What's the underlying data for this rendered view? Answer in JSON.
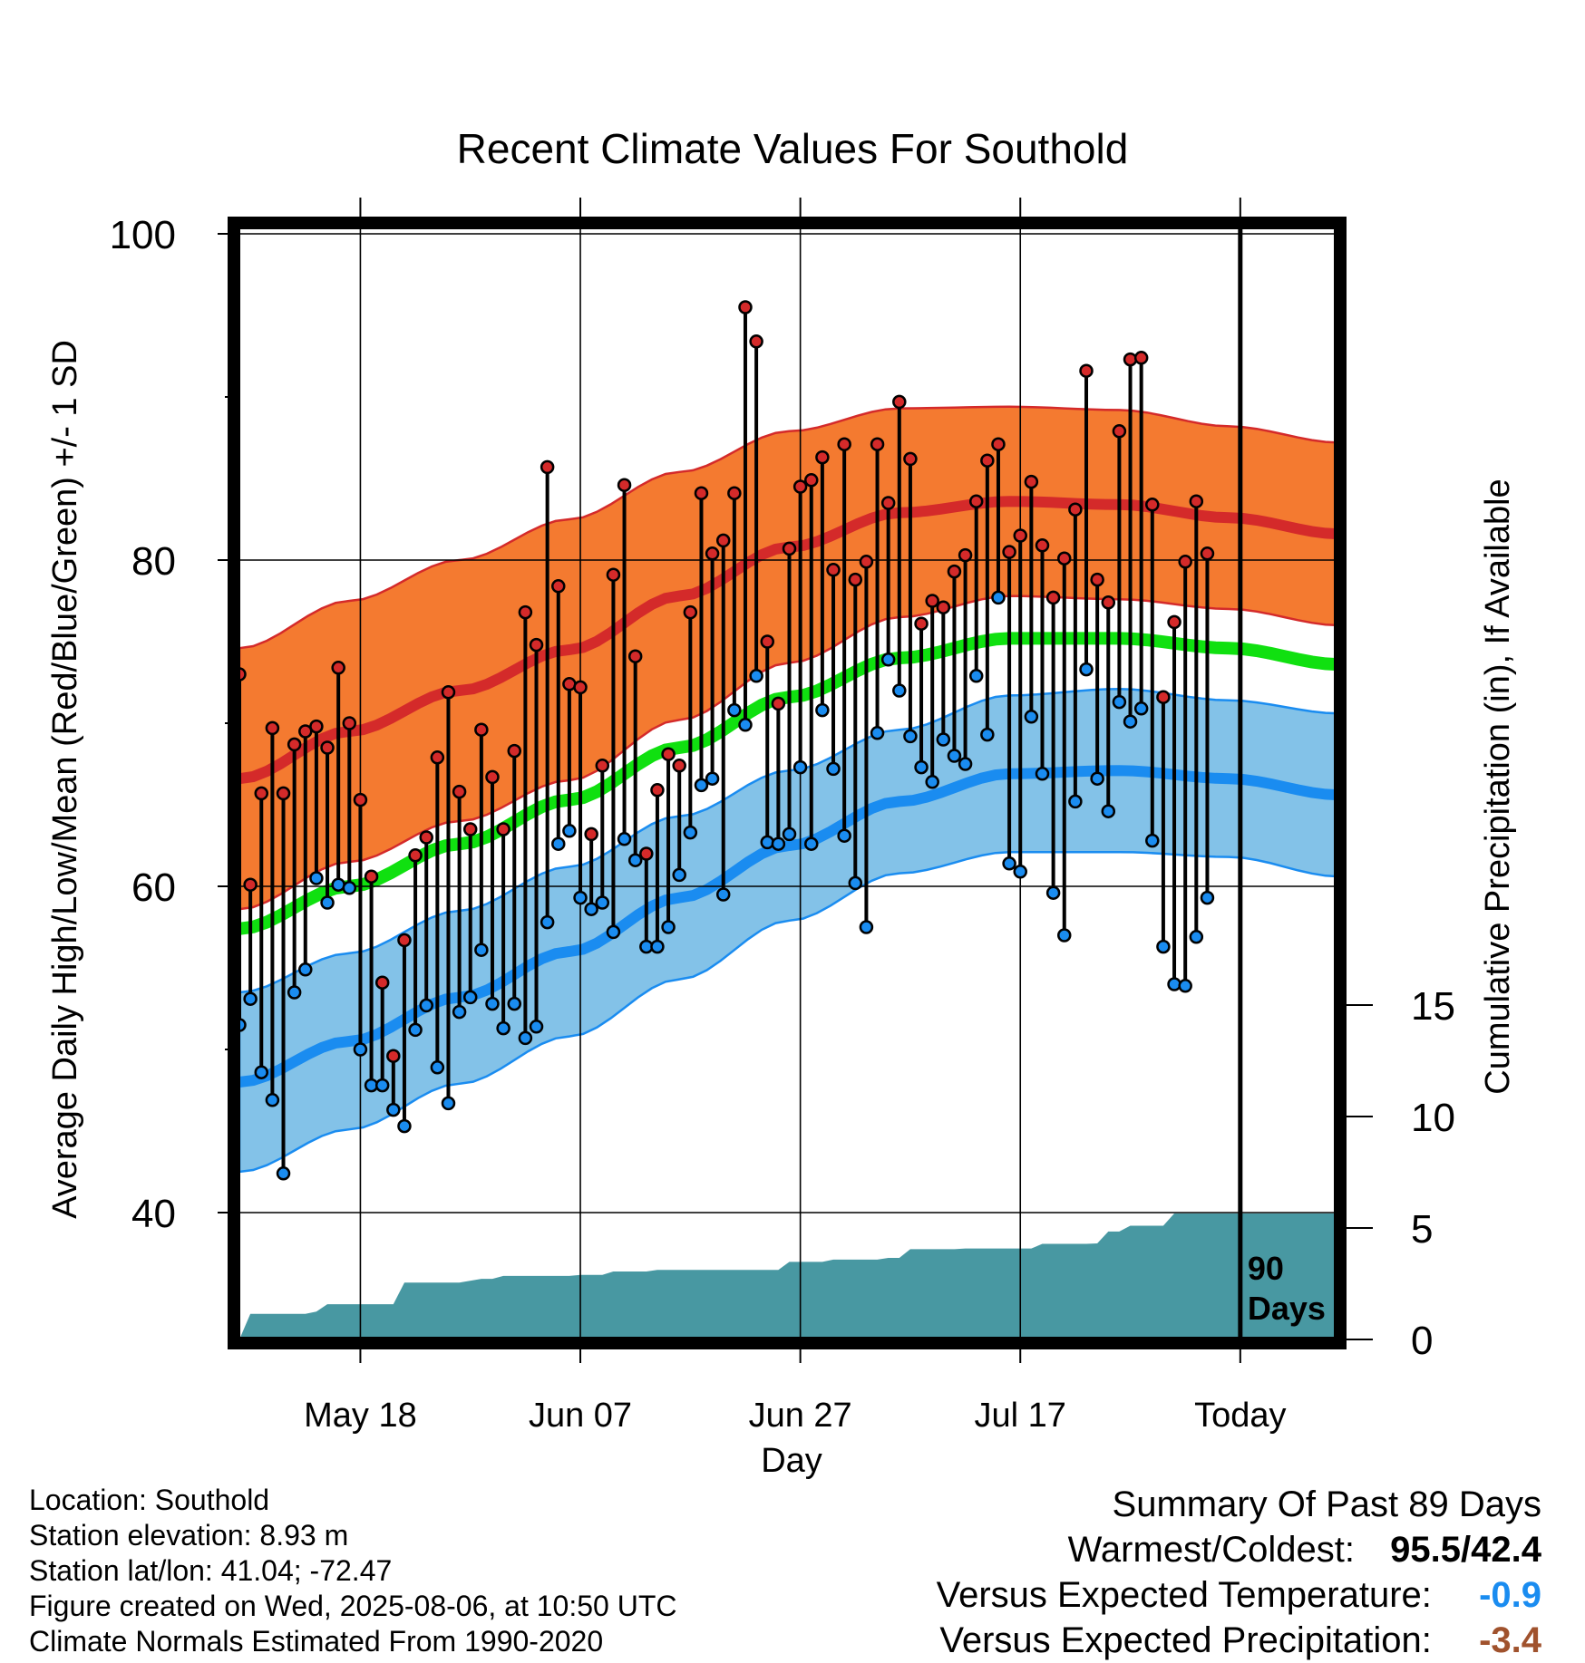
{
  "chart_data": {
    "type": "line",
    "title": "Recent Climate Values For Southold",
    "xlabel": "Day",
    "ylabel": "Average Daily High/Low/Mean (Red/Blue/Green) +/- 1 SD",
    "y2label": "Cumulative Precipitation (in), If Available",
    "ylim": [
      33,
      101
    ],
    "y2lim": [
      0,
      20
    ],
    "yticks": [
      40,
      60,
      80,
      100
    ],
    "y2ticks": [
      0,
      5,
      10,
      15
    ],
    "x_date_range": [
      "2025-05-07",
      "2025-08-06"
    ],
    "xticks": [
      {
        "date": "2025-05-18",
        "label": "May 18"
      },
      {
        "date": "2025-06-07",
        "label": "Jun 07"
      },
      {
        "date": "2025-06-27",
        "label": "Jun 27"
      },
      {
        "date": "2025-07-17",
        "label": "Jul 17"
      },
      {
        "date": "2025-08-06",
        "label": "Today"
      }
    ],
    "today_marker": {
      "date": "2025-08-06",
      "label": [
        "90",
        "Days"
      ]
    },
    "normals": {
      "dates": [
        "2025-05-07",
        "2025-05-17",
        "2025-05-27",
        "2025-06-06",
        "2025-06-16",
        "2025-06-26",
        "2025-07-06",
        "2025-07-16",
        "2025-07-26",
        "2025-08-05",
        "2025-08-15"
      ],
      "high_mean": [
        66.6,
        69.5,
        72.0,
        74.5,
        77.8,
        80.8,
        82.9,
        83.6,
        83.4,
        82.6,
        81.6
      ],
      "high_sd": [
        8.0,
        8.0,
        8.0,
        8.0,
        7.6,
        7.1,
        6.4,
        5.8,
        5.8,
        5.6,
        5.6
      ],
      "low_mean": [
        48.0,
        50.5,
        53.2,
        56.0,
        59.3,
        62.5,
        65.2,
        66.9,
        67.1,
        66.6,
        65.6
      ],
      "low_sd": [
        5.5,
        5.4,
        5.3,
        5.2,
        5.0,
        4.6,
        4.4,
        4.8,
        5.0,
        4.8,
        5.0
      ],
      "mean_temp": [
        57.4,
        60.0,
        62.6,
        65.3,
        68.5,
        71.6,
        74.0,
        75.2,
        75.2,
        74.6,
        73.6
      ]
    },
    "series": [
      {
        "name": "High",
        "start_date": "2025-05-07",
        "values": [
          73.0,
          60.1,
          65.7,
          69.7,
          65.7,
          68.7,
          69.5,
          69.8,
          68.5,
          73.4,
          70.0,
          65.3,
          60.6,
          54.1,
          49.6,
          56.7,
          61.9,
          63.0,
          67.9,
          71.9,
          65.8,
          63.5,
          69.6,
          66.7,
          63.5,
          68.3,
          76.8,
          74.8,
          85.7,
          78.4,
          72.4,
          72.2,
          63.2,
          67.4,
          79.1,
          84.6,
          74.1,
          62.0,
          65.9,
          68.1,
          67.4,
          76.8,
          84.1,
          80.4,
          81.2,
          84.1,
          95.5,
          93.4,
          75.0,
          71.2,
          80.7,
          84.5,
          84.9,
          86.3,
          79.4,
          87.1,
          78.8,
          79.9,
          87.1,
          83.5,
          89.7,
          86.2,
          76.1,
          77.5,
          77.1,
          79.3,
          80.3,
          83.6,
          86.1,
          87.1,
          80.5,
          81.5,
          84.8,
          80.9,
          77.7,
          80.1,
          83.1,
          91.6,
          78.8,
          77.4,
          87.9,
          92.3,
          92.4,
          83.4,
          71.6,
          76.2,
          79.9,
          83.6,
          80.4
        ]
      },
      {
        "name": "Low",
        "start_date": "2025-05-07",
        "values": [
          51.5,
          53.1,
          48.6,
          46.9,
          42.4,
          53.5,
          54.9,
          60.5,
          59.0,
          60.1,
          59.9,
          50.0,
          47.8,
          47.8,
          46.3,
          45.3,
          51.2,
          52.7,
          48.9,
          46.7,
          52.3,
          53.2,
          56.1,
          52.8,
          51.3,
          52.8,
          50.7,
          51.4,
          57.8,
          62.6,
          63.4,
          59.3,
          58.6,
          59.0,
          57.2,
          62.9,
          61.6,
          56.3,
          56.3,
          57.5,
          60.7,
          63.3,
          66.2,
          66.6,
          59.5,
          70.8,
          69.9,
          72.9,
          62.7,
          62.6,
          63.2,
          67.3,
          62.6,
          70.8,
          67.2,
          63.1,
          60.2,
          57.5,
          69.4,
          73.9,
          72.0,
          69.2,
          67.3,
          66.4,
          69.0,
          68.0,
          67.5,
          72.9,
          69.3,
          77.7,
          61.4,
          60.9,
          70.4,
          66.9,
          59.6,
          57.0,
          65.2,
          73.3,
          66.6,
          64.6,
          71.3,
          70.1,
          70.9,
          62.8,
          56.3,
          54.0,
          53.9,
          56.9,
          59.3
        ]
      },
      {
        "name": "Cumulative Precipitation",
        "axis": "y2",
        "points": [
          [
            "2025-05-07",
            0.0
          ],
          [
            "2025-05-08",
            1.15
          ],
          [
            "2025-05-13",
            1.15
          ],
          [
            "2025-05-14",
            1.25
          ],
          [
            "2025-05-15",
            1.58
          ],
          [
            "2025-05-21",
            1.58
          ],
          [
            "2025-05-22",
            2.55
          ],
          [
            "2025-05-27",
            2.55
          ],
          [
            "2025-05-29",
            2.72
          ],
          [
            "2025-05-30",
            2.72
          ],
          [
            "2025-05-31",
            2.85
          ],
          [
            "2025-06-06",
            2.85
          ],
          [
            "2025-06-07",
            2.9
          ],
          [
            "2025-06-09",
            2.9
          ],
          [
            "2025-06-10",
            3.05
          ],
          [
            "2025-06-13",
            3.05
          ],
          [
            "2025-06-14",
            3.12
          ],
          [
            "2025-06-25",
            3.12
          ],
          [
            "2025-06-26",
            3.48
          ],
          [
            "2025-06-29",
            3.48
          ],
          [
            "2025-06-30",
            3.58
          ],
          [
            "2025-07-04",
            3.58
          ],
          [
            "2025-07-05",
            3.66
          ],
          [
            "2025-07-06",
            3.66
          ],
          [
            "2025-07-07",
            4.05
          ],
          [
            "2025-07-11",
            4.05
          ],
          [
            "2025-07-12",
            4.08
          ],
          [
            "2025-07-18",
            4.08
          ],
          [
            "2025-07-19",
            4.29
          ],
          [
            "2025-07-22",
            4.29
          ],
          [
            "2025-07-23",
            4.29
          ],
          [
            "2025-07-24",
            4.31
          ],
          [
            "2025-07-25",
            4.84
          ],
          [
            "2025-07-26",
            4.84
          ],
          [
            "2025-07-27",
            5.1
          ],
          [
            "2025-07-29",
            5.1
          ],
          [
            "2025-07-30",
            5.1
          ],
          [
            "2025-07-31",
            5.65
          ],
          [
            "2025-08-01",
            5.65
          ],
          [
            "2025-08-15",
            5.65
          ]
        ]
      }
    ],
    "colors": {
      "high_band": "#f47a30",
      "high_line": "#d42a2a",
      "low_band": "#83c2e8",
      "low_line": "#1a8cf0",
      "mean_line": "#10e010",
      "precip": "#4898a2",
      "high_dot": "#d42a2a",
      "low_dot": "#1a8cf0"
    },
    "grid": true
  },
  "info": {
    "location": "Location: Southold",
    "elevation": "Station elevation: 8.93 m",
    "latlon": "Station lat/lon: 41.04; -72.47",
    "created": "Figure created on Wed, 2025-08-06, at 10:50 UTC",
    "normals": "Climate Normals Estimated From 1990-2020"
  },
  "summary": {
    "heading": "Summary Of Past 89 Days",
    "warm_cold_label": "Warmest/Coldest:",
    "warmest": "95.5",
    "slash": "/",
    "coldest": "42.4",
    "temp_label": "Versus Expected Temperature:",
    "temp_value": "-0.9",
    "temp_color": "#1a8cf0",
    "precip_label": "Versus Expected Precipitation:",
    "precip_value": "-3.4",
    "precip_color": "#a0522d"
  }
}
